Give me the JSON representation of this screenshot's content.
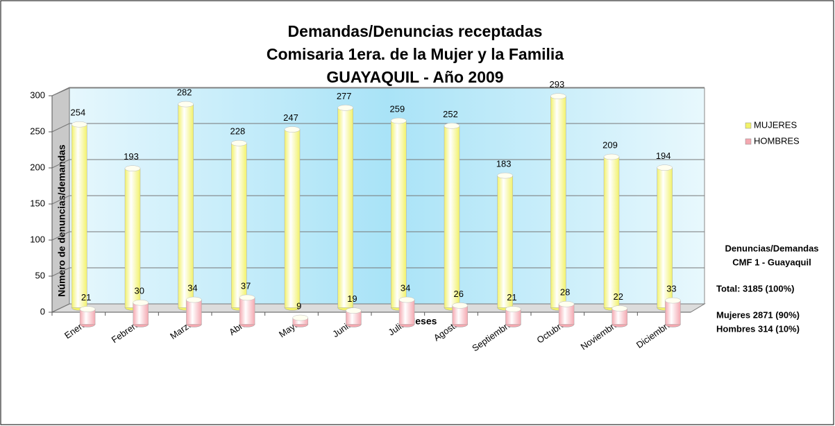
{
  "chart_data": {
    "type": "bar3d",
    "title": [
      "Demandas/Denuncias receptadas",
      "Comisaria 1era. de la Mujer y la Familia",
      "GUAYAQUIL - Año 2009"
    ],
    "x_label": "Meses",
    "y_label": "Número de denuncias/demandas",
    "categories": [
      "Enero",
      "Febrero",
      "Marzo",
      "Abril",
      "Mayo",
      "Junio",
      "Julio",
      "Agosto",
      "Septiembre",
      "Octubre",
      "Noviembre",
      "Diciembre"
    ],
    "series": [
      {
        "name": "MUJERES",
        "color": "#f2f26a",
        "values": [
          254,
          193,
          282,
          228,
          247,
          277,
          259,
          252,
          183,
          293,
          209,
          194
        ]
      },
      {
        "name": "HOMBRES",
        "color": "#f4a8b0",
        "values": [
          21,
          30,
          34,
          37,
          9,
          19,
          34,
          26,
          21,
          28,
          22,
          33
        ]
      }
    ],
    "ylim": [
      0,
      300
    ],
    "yticks": [
      0,
      50,
      100,
      150,
      200,
      250,
      300
    ],
    "grid": true,
    "legend": "right",
    "annotations": [
      "Denuncias/Demandas",
      "CMF 1 - Guayaquil",
      "Total:  3185 (100%)",
      "Mujeres  2871 (90%)",
      "Hombres  314 (10%)"
    ]
  }
}
